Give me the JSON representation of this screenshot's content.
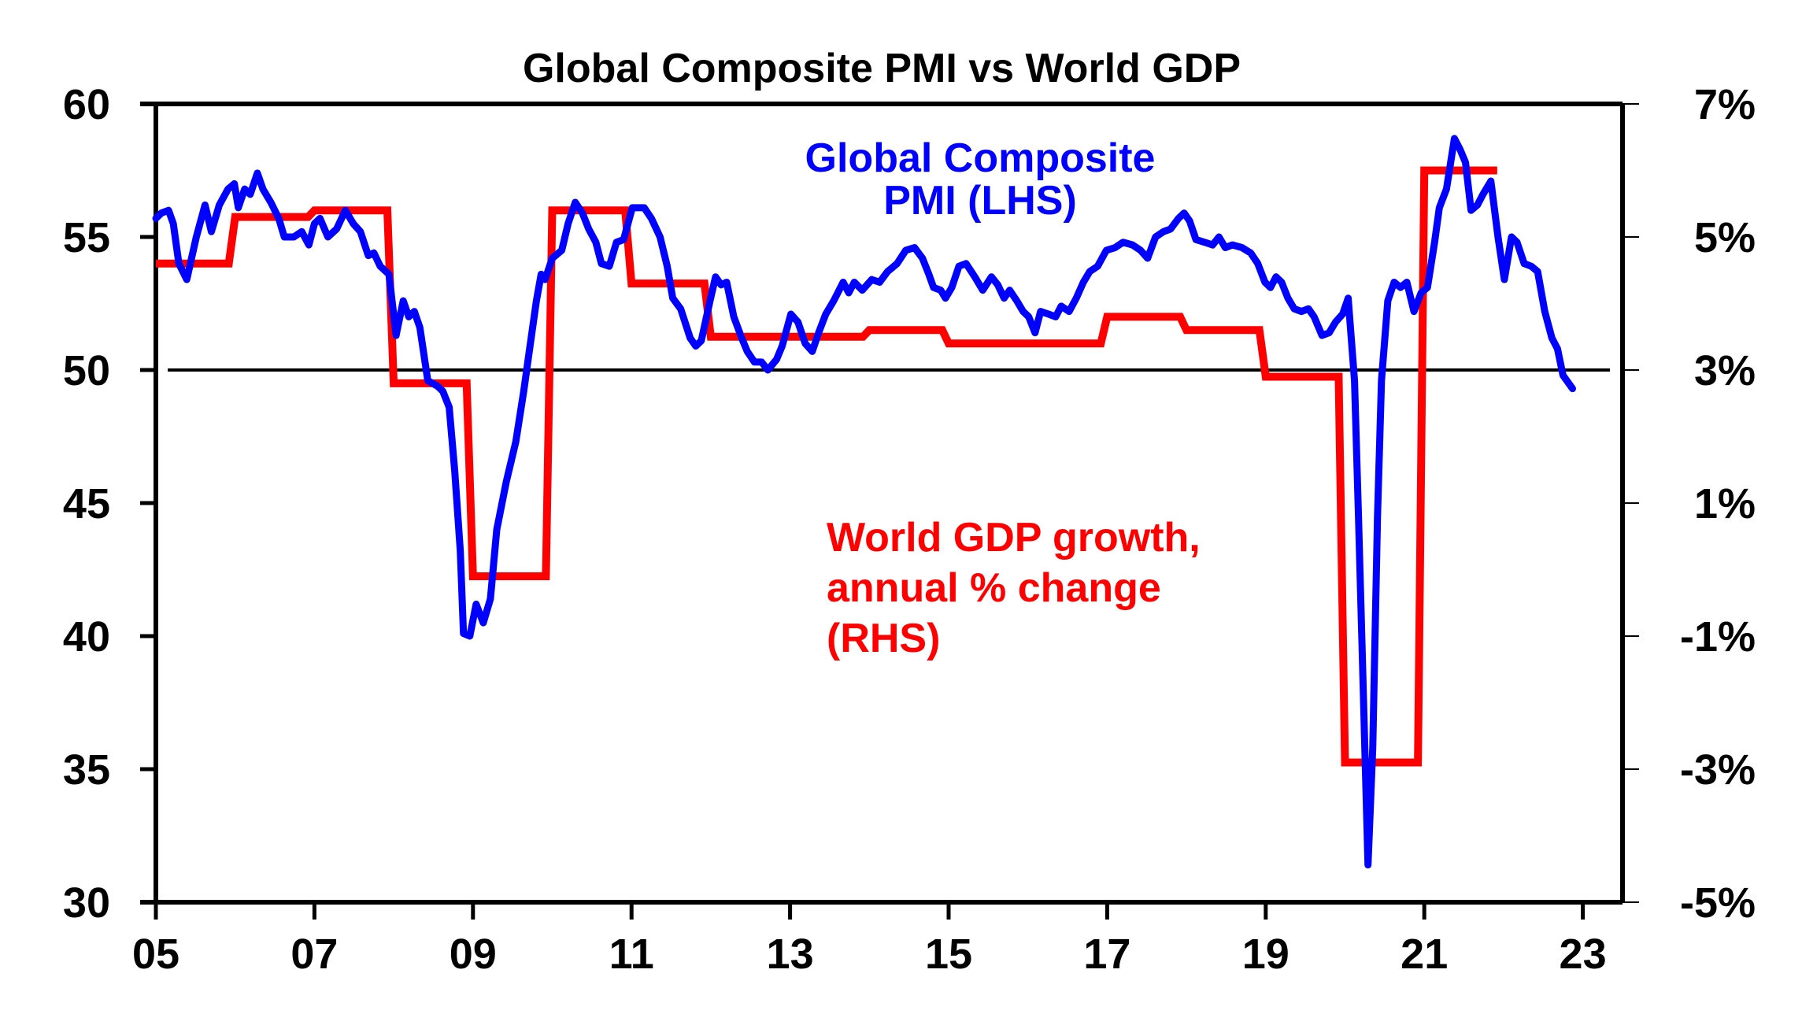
{
  "chart_data": {
    "type": "line",
    "title": "Global Composite PMI vs World GDP",
    "xlabel": "",
    "ylabel_left": "",
    "ylabel_right": "",
    "x_ticks": [
      "05",
      "07",
      "09",
      "11",
      "13",
      "15",
      "17",
      "19",
      "21",
      "23"
    ],
    "x_tick_years": [
      5,
      7,
      9,
      11,
      13,
      15,
      17,
      19,
      21,
      23
    ],
    "xlim": [
      5,
      23.5
    ],
    "y_left_ticks": [
      "30",
      "35",
      "40",
      "45",
      "50",
      "55",
      "60"
    ],
    "y_left_values": [
      30,
      35,
      40,
      45,
      50,
      55,
      60
    ],
    "ylim_left": [
      30,
      60
    ],
    "y_right_ticks": [
      "-5%",
      "-3%",
      "-1%",
      "1%",
      "3%",
      "5%",
      "7%"
    ],
    "y_right_values": [
      -5,
      -3,
      -1,
      1,
      3,
      5,
      7
    ],
    "ylim_right": [
      -5,
      7
    ],
    "reference_line": {
      "axis": "left",
      "value": 50
    },
    "grid": false,
    "legend": "none (inline annotations)",
    "colors": {
      "pmi": "#0000ff",
      "gdp": "#ff0000",
      "axis": "#000000"
    },
    "annotations": [
      {
        "series": "pmi",
        "lines": [
          "Global Composite",
          "PMI (LHS)"
        ],
        "color": "#0000ff"
      },
      {
        "series": "gdp",
        "lines": [
          "World GDP growth,",
          "annual % change",
          "(RHS)"
        ],
        "color": "#ff0000"
      }
    ],
    "series": [
      {
        "name": "Global Composite PMI (LHS)",
        "axis": "left",
        "color": "#0000ff",
        "x": [
          5.0,
          5.07,
          5.16,
          5.22,
          5.29,
          5.39,
          5.45,
          5.51,
          5.62,
          5.7,
          5.8,
          5.91,
          5.99,
          6.04,
          6.12,
          6.19,
          6.28,
          6.35,
          6.45,
          6.55,
          6.62,
          6.74,
          6.84,
          6.93,
          7.0,
          7.07,
          7.17,
          7.28,
          7.39,
          7.49,
          7.58,
          7.68,
          7.75,
          7.83,
          7.94,
          8.03,
          8.12,
          8.19,
          8.26,
          8.33,
          8.43,
          8.55,
          8.62,
          8.7,
          8.77,
          8.84,
          8.88,
          8.96,
          9.04,
          9.13,
          9.22,
          9.3,
          9.42,
          9.54,
          9.64,
          9.71,
          9.8,
          9.86,
          9.91,
          10.0,
          10.12,
          10.2,
          10.29,
          10.38,
          10.46,
          10.55,
          10.62,
          10.72,
          10.81,
          10.9,
          11.01,
          11.1,
          11.16,
          11.25,
          11.36,
          11.45,
          11.52,
          11.62,
          11.74,
          11.81,
          11.88,
          11.99,
          12.06,
          12.13,
          12.2,
          12.29,
          12.39,
          12.46,
          12.55,
          12.64,
          12.72,
          12.83,
          12.9,
          13.01,
          13.1,
          13.19,
          13.28,
          13.36,
          13.45,
          13.55,
          13.67,
          13.74,
          13.81,
          13.91,
          14.03,
          14.13,
          14.23,
          14.35,
          14.46,
          14.57,
          14.67,
          14.75,
          14.81,
          14.9,
          14.96,
          15.04,
          15.13,
          15.22,
          15.33,
          15.43,
          15.54,
          15.62,
          15.7,
          15.77,
          15.86,
          15.94,
          16.01,
          16.09,
          16.16,
          16.26,
          16.35,
          16.42,
          16.52,
          16.61,
          16.7,
          16.78,
          16.88,
          16.99,
          17.1,
          17.2,
          17.32,
          17.42,
          17.51,
          17.61,
          17.71,
          17.8,
          17.9,
          17.97,
          18.04,
          18.12,
          18.23,
          18.33,
          18.41,
          18.49,
          18.58,
          18.7,
          18.81,
          18.9,
          18.99,
          19.06,
          19.13,
          19.2,
          19.28,
          19.36,
          19.45,
          19.54,
          19.61,
          19.71,
          19.8,
          19.88,
          19.97,
          20.04,
          20.12,
          20.17,
          20.23,
          20.29,
          20.35,
          20.41,
          20.46,
          20.54,
          20.62,
          20.7,
          20.78,
          20.87,
          20.96,
          21.04,
          21.13,
          21.19,
          21.28,
          21.38,
          21.45,
          21.52,
          21.59,
          21.67,
          21.74,
          21.84,
          21.93,
          22.01,
          22.1,
          22.17,
          22.26,
          22.35,
          22.43,
          22.52,
          22.61,
          22.68,
          22.75,
          22.87
        ],
        "values": [
          55.7,
          55.9,
          56.0,
          55.5,
          54.0,
          53.4,
          54.2,
          55.0,
          56.2,
          55.2,
          56.2,
          56.8,
          57.0,
          56.1,
          56.8,
          56.6,
          57.4,
          56.8,
          56.3,
          55.7,
          55.0,
          55.0,
          55.2,
          54.7,
          55.5,
          55.7,
          55.0,
          55.3,
          56.0,
          55.5,
          55.2,
          54.3,
          54.4,
          53.9,
          53.6,
          51.3,
          52.6,
          52.0,
          52.2,
          51.6,
          49.6,
          49.4,
          49.2,
          48.6,
          46.2,
          43.2,
          40.1,
          40.0,
          41.2,
          40.5,
          41.4,
          44.0,
          45.8,
          47.3,
          49.2,
          50.7,
          52.6,
          53.6,
          53.4,
          54.2,
          54.5,
          55.5,
          56.3,
          55.9,
          55.3,
          54.8,
          54.0,
          53.9,
          54.8,
          54.9,
          56.1,
          56.1,
          56.1,
          55.7,
          55.0,
          53.9,
          52.7,
          52.3,
          51.2,
          50.9,
          51.1,
          52.6,
          53.5,
          53.2,
          53.3,
          52.0,
          51.2,
          50.7,
          50.3,
          50.3,
          50.0,
          50.4,
          50.9,
          52.1,
          51.8,
          51.0,
          50.7,
          51.4,
          52.1,
          52.6,
          53.3,
          52.9,
          53.3,
          53.0,
          53.4,
          53.3,
          53.7,
          54.0,
          54.5,
          54.6,
          54.2,
          53.6,
          53.1,
          53.0,
          52.7,
          53.1,
          53.9,
          54.0,
          53.5,
          53.0,
          53.5,
          53.2,
          52.7,
          53.0,
          52.6,
          52.2,
          52.0,
          51.4,
          52.2,
          52.1,
          52.0,
          52.4,
          52.2,
          52.7,
          53.3,
          53.7,
          53.9,
          54.5,
          54.6,
          54.8,
          54.7,
          54.5,
          54.2,
          55.0,
          55.2,
          55.3,
          55.7,
          55.9,
          55.6,
          54.9,
          54.8,
          54.7,
          55.0,
          54.6,
          54.7,
          54.6,
          54.4,
          54.0,
          53.3,
          53.1,
          53.5,
          53.3,
          52.7,
          52.3,
          52.2,
          52.3,
          52.0,
          51.3,
          51.4,
          51.8,
          52.1,
          52.7,
          49.6,
          44.5,
          38.0,
          31.4,
          35.8,
          44.5,
          49.6,
          52.6,
          53.3,
          53.1,
          53.3,
          52.2,
          52.9,
          53.1,
          54.8,
          56.1,
          56.8,
          58.7,
          58.3,
          57.8,
          56.0,
          56.2,
          56.6,
          57.1,
          55.0,
          53.4,
          55.0,
          54.8,
          54.0,
          53.9,
          53.7,
          52.2,
          51.2,
          50.8,
          49.8,
          49.3
        ]
      },
      {
        "name": "World GDP growth, annual % change (RHS)",
        "axis": "right",
        "color": "#ff0000",
        "step": "annual",
        "years": [
          2005,
          2006,
          2007,
          2008,
          2009,
          2010,
          2011,
          2012,
          2013,
          2014,
          2015,
          2016,
          2017,
          2018,
          2019,
          2020,
          2021
        ],
        "values": [
          4.6,
          5.3,
          5.4,
          2.8,
          -0.1,
          5.4,
          4.3,
          3.5,
          3.5,
          3.6,
          3.4,
          3.4,
          3.8,
          3.6,
          2.9,
          -2.9,
          6.0
        ]
      }
    ]
  }
}
